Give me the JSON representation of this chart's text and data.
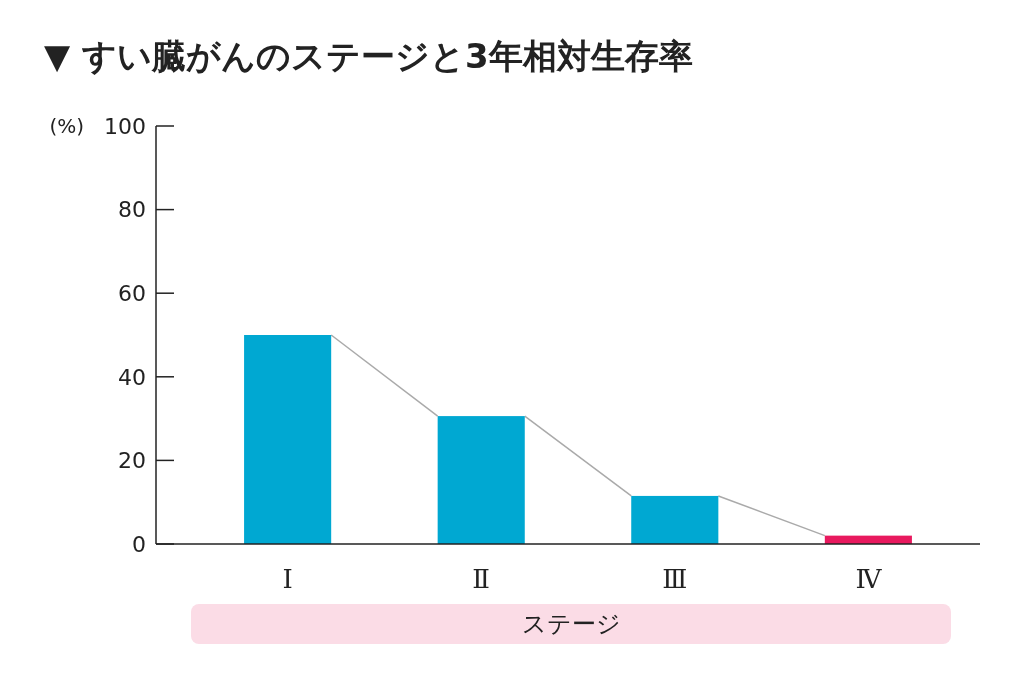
{
  "chart_data": {
    "type": "bar",
    "title": "▼ すい臓がんのステージと3年相対生存率",
    "xlabel": "ステージ",
    "ylabel": "(%)",
    "categories": [
      "Ⅰ",
      "Ⅱ",
      "Ⅲ",
      "Ⅳ"
    ],
    "values": [
      50,
      30.6,
      11.5,
      2
    ],
    "colors": [
      "#00a8d2",
      "#00a8d2",
      "#00a8d2",
      "#e8195e"
    ],
    "ylim": [
      0,
      100
    ],
    "yticks": [
      0,
      20,
      40,
      60,
      80,
      100
    ],
    "grid": false
  }
}
